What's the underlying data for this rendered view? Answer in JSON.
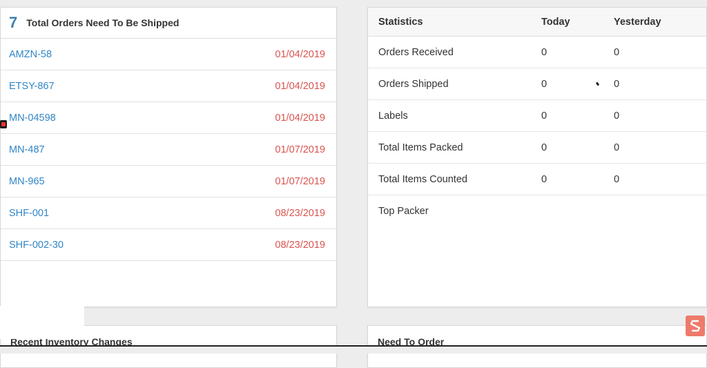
{
  "orders": {
    "count": "7",
    "title": "Total Orders Need To Be Shipped",
    "rows": [
      {
        "id": "AMZN-58",
        "date": "01/04/2019"
      },
      {
        "id": "ETSY-867",
        "date": "01/04/2019"
      },
      {
        "id": "MN-04598",
        "date": "01/04/2019"
      },
      {
        "id": "MN-487",
        "date": "01/07/2019"
      },
      {
        "id": "MN-965",
        "date": "01/07/2019"
      },
      {
        "id": "SHF-001",
        "date": "08/23/2019"
      },
      {
        "id": "SHF-002-30",
        "date": "08/23/2019"
      }
    ]
  },
  "stats": {
    "headers": {
      "label": "Statistics",
      "today": "Today",
      "yesterday": "Yesterday"
    },
    "rows": [
      {
        "label": "Orders Received",
        "today": "0",
        "yesterday": "0"
      },
      {
        "label": "Orders Shipped",
        "today": "0",
        "yesterday": "0"
      },
      {
        "label": "Labels",
        "today": "0",
        "yesterday": "0"
      },
      {
        "label": "Total Items Packed",
        "today": "0",
        "yesterday": "0"
      },
      {
        "label": "Total Items Counted",
        "today": "0",
        "yesterday": "0"
      },
      {
        "label": "Top Packer",
        "today": "",
        "yesterday": ""
      }
    ]
  },
  "inventory": {
    "title": "Recent Inventory Changes"
  },
  "need_to_order": {
    "title": "Need To Order"
  },
  "colors": {
    "accent": "#3c7fb1",
    "link": "#2f86c6",
    "date": "#d9534f",
    "badge": "#ee7a6a"
  },
  "icons": {
    "brand": "brand-s-logo-icon",
    "marker": "record-marker-icon"
  }
}
